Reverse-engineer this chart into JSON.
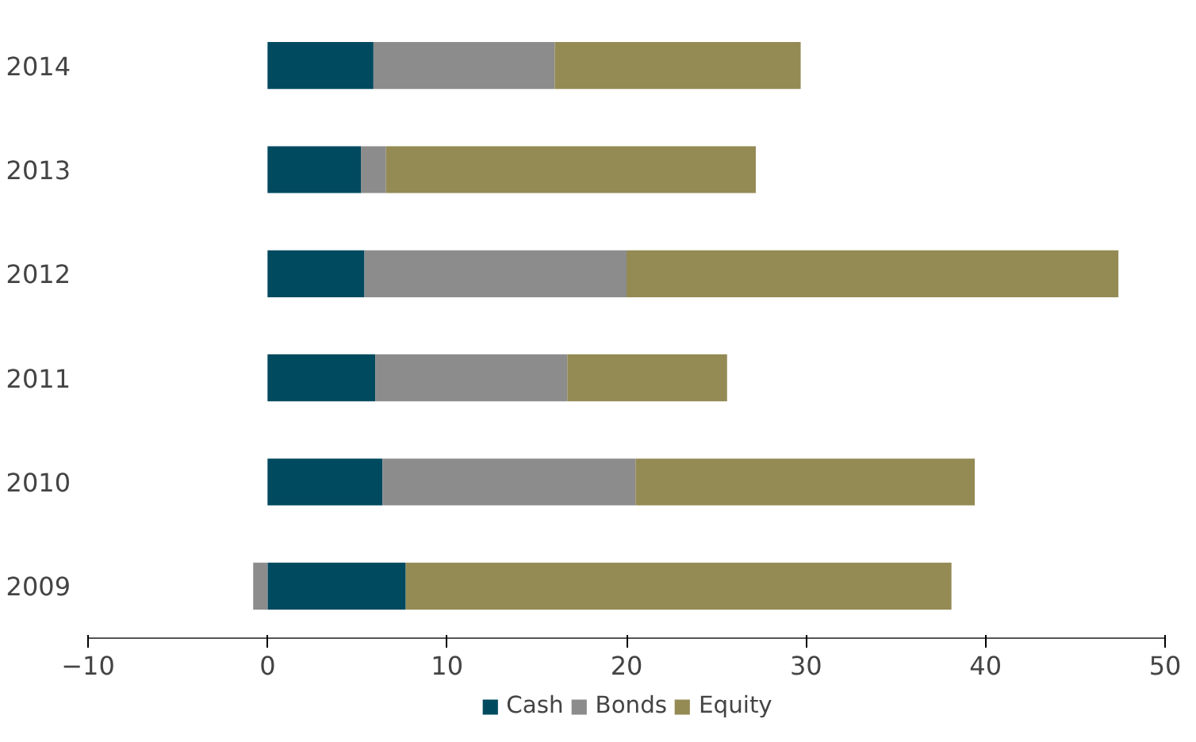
{
  "chart_data": {
    "type": "bar",
    "orientation": "horizontal",
    "stacked": true,
    "categories": [
      "2014",
      "2013",
      "2012",
      "2011",
      "2010",
      "2009"
    ],
    "series": [
      {
        "name": "Cash",
        "color": "#004a5f",
        "values": [
          5.9,
          5.2,
          5.4,
          6.0,
          6.4,
          7.7
        ]
      },
      {
        "name": "Bonds",
        "color": "#8c8c8c",
        "values": [
          10.1,
          1.4,
          14.6,
          10.7,
          14.1,
          -0.8
        ]
      },
      {
        "name": "Equity",
        "color": "#948a54",
        "values": [
          13.7,
          20.6,
          27.4,
          8.9,
          18.9,
          30.4
        ]
      }
    ],
    "xlim": [
      -10,
      50
    ],
    "xticks": [
      -10,
      0,
      10,
      20,
      30,
      40,
      50
    ],
    "grid": false,
    "legend": "bottom"
  }
}
